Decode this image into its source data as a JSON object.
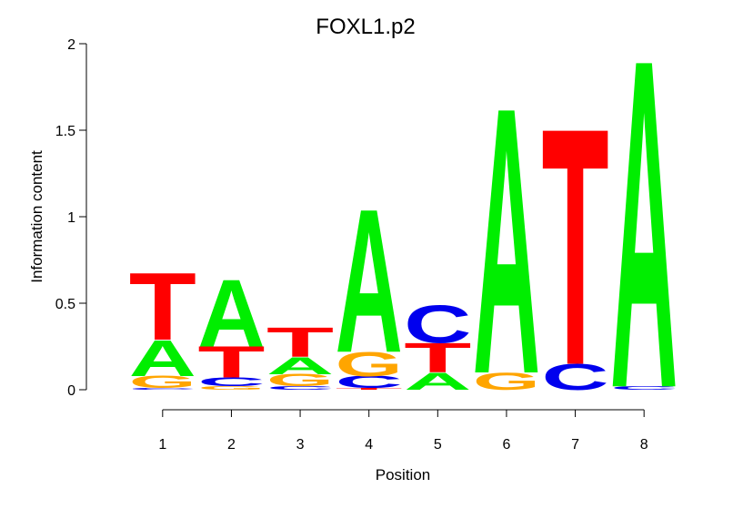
{
  "chart_data": {
    "type": "logo",
    "title": "FOXL1.p2",
    "xlabel": "Position",
    "ylabel": "Information content",
    "colors": {
      "A": "#00ee00",
      "C": "#0000ee",
      "G": "#ffa500",
      "T": "#ff0000"
    },
    "xlim": [
      0.5,
      8.5
    ],
    "xticks": [
      1,
      2,
      3,
      4,
      5,
      6,
      7,
      8
    ],
    "ylim": [
      0,
      2
    ],
    "yticks": [
      0,
      0.5,
      1,
      1.5,
      2
    ],
    "columns": [
      {
        "letters": [
          "C",
          "G",
          "A",
          "T"
        ],
        "values": [
          0.01,
          0.07,
          0.21,
          0.39
        ]
      },
      {
        "letters": [
          "G",
          "C",
          "T",
          "A"
        ],
        "values": [
          0.02,
          0.05,
          0.18,
          0.39
        ]
      },
      {
        "letters": [
          "C",
          "G",
          "A",
          "T"
        ],
        "values": [
          0.02,
          0.07,
          0.1,
          0.17
        ]
      },
      {
        "letters": [
          "T",
          "C",
          "G",
          "A"
        ],
        "values": [
          0.01,
          0.07,
          0.14,
          0.83
        ]
      },
      {
        "letters": [
          "A",
          "T",
          "C"
        ],
        "values": [
          0.1,
          0.17,
          0.22
        ]
      },
      {
        "letters": [
          "G",
          "A"
        ],
        "values": [
          0.1,
          1.54
        ]
      },
      {
        "letters": [
          "C",
          "T"
        ],
        "values": [
          0.15,
          1.37
        ]
      },
      {
        "letters": [
          "C",
          "A"
        ],
        "values": [
          0.02,
          1.9
        ]
      }
    ]
  }
}
